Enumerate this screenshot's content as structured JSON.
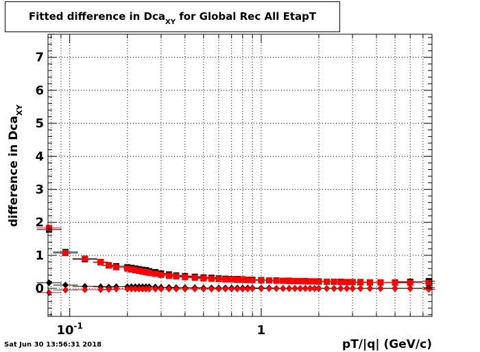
{
  "title": {
    "main": "Fitted difference in Dca",
    "sub": "XY",
    "suffix": " for Global Rec All EtapT"
  },
  "ylabel": {
    "main": "difference in Dca",
    "sub": "XY"
  },
  "xlabel": "pT/|q| (GeV/c)",
  "datestamp": "Sat Jun 30 13:56:31 2018",
  "colors": {
    "series_red": "#ff0000",
    "series_black": "#000000",
    "grid": "#000000"
  },
  "chart_data": {
    "type": "scatter",
    "xscale": "log",
    "xlim": [
      0.077,
      7.8
    ],
    "ylim": [
      -0.85,
      7.7
    ],
    "grid": true,
    "xticks": [
      {
        "value": 0.1,
        "label": "10",
        "sup": "-1"
      },
      {
        "value": 1,
        "label": "1",
        "sup": ""
      }
    ],
    "yticks": [
      0,
      1,
      2,
      3,
      4,
      5,
      6,
      7
    ],
    "series": [
      {
        "color": "#000000",
        "marker": "square",
        "x": [
          0.078,
          0.095,
          0.12,
          0.145,
          0.16,
          0.175,
          0.2,
          0.21,
          0.22,
          0.23,
          0.24,
          0.25,
          0.26,
          0.28,
          0.3,
          0.33,
          0.36,
          0.4,
          0.45,
          0.5,
          0.55,
          0.6,
          0.65,
          0.7,
          0.75,
          0.8,
          0.85,
          0.9,
          1.0,
          1.1,
          1.2,
          1.3,
          1.4,
          1.5,
          1.6,
          1.7,
          1.8,
          1.9,
          2.0,
          2.2,
          2.4,
          2.6,
          2.8,
          3.0,
          3.3,
          3.7,
          4.2,
          5.0,
          6.0,
          7.5
        ],
        "y": [
          1.78,
          1.1,
          0.88,
          0.79,
          0.7,
          0.67,
          0.64,
          0.62,
          0.6,
          0.58,
          0.56,
          0.55,
          0.52,
          0.49,
          0.45,
          0.42,
          0.39,
          0.37,
          0.35,
          0.33,
          0.32,
          0.3,
          0.29,
          0.28,
          0.28,
          0.27,
          0.26,
          0.26,
          0.25,
          0.24,
          0.24,
          0.23,
          0.23,
          0.22,
          0.22,
          0.22,
          0.21,
          0.21,
          0.21,
          0.2,
          0.2,
          0.2,
          0.19,
          0.19,
          0.19,
          0.18,
          0.18,
          0.18,
          0.2,
          0.22
        ]
      },
      {
        "color": "#ff0000",
        "marker": "square",
        "x": [
          0.078,
          0.095,
          0.12,
          0.145,
          0.16,
          0.175,
          0.2,
          0.21,
          0.22,
          0.23,
          0.24,
          0.25,
          0.26,
          0.28,
          0.3,
          0.33,
          0.36,
          0.4,
          0.45,
          0.5,
          0.55,
          0.6,
          0.65,
          0.7,
          0.75,
          0.8,
          0.85,
          0.9,
          1.0,
          1.1,
          1.2,
          1.3,
          1.4,
          1.5,
          1.6,
          1.7,
          1.8,
          1.9,
          2.0,
          2.2,
          2.4,
          2.6,
          2.8,
          3.0,
          3.3,
          3.7,
          4.2,
          5.0,
          6.0,
          7.5
        ],
        "y": [
          1.83,
          1.07,
          0.9,
          0.8,
          0.69,
          0.64,
          0.6,
          0.57,
          0.55,
          0.53,
          0.51,
          0.49,
          0.47,
          0.44,
          0.41,
          0.38,
          0.36,
          0.34,
          0.32,
          0.3,
          0.29,
          0.28,
          0.27,
          0.27,
          0.26,
          0.26,
          0.25,
          0.25,
          0.24,
          0.24,
          0.23,
          0.23,
          0.22,
          0.22,
          0.22,
          0.21,
          0.21,
          0.21,
          0.2,
          0.2,
          0.2,
          0.19,
          0.19,
          0.19,
          0.18,
          0.18,
          0.18,
          0.17,
          0.17,
          0.16
        ]
      },
      {
        "color": "#000000",
        "marker": "diamond",
        "x": [
          0.078,
          0.095,
          0.12,
          0.145,
          0.16,
          0.175,
          0.2,
          0.21,
          0.22,
          0.23,
          0.24,
          0.25,
          0.26,
          0.28,
          0.3,
          0.33,
          0.36,
          0.4,
          0.45,
          0.5,
          0.55,
          0.6,
          0.65,
          0.7,
          0.75,
          0.8,
          0.85,
          0.9,
          1.0,
          1.1,
          1.2,
          1.3,
          1.4,
          1.5,
          1.6,
          1.7,
          1.8,
          1.9,
          2.0,
          2.2,
          2.4,
          2.6,
          2.8,
          3.0,
          3.3,
          3.7,
          4.2,
          5.0,
          6.0,
          7.5
        ],
        "y": [
          0.17,
          0.1,
          0.06,
          0.05,
          0.04,
          0.05,
          0.05,
          0.05,
          0.05,
          0.05,
          0.05,
          0.05,
          0.05,
          0.04,
          0.03,
          0.03,
          0.02,
          0.02,
          0.02,
          0.01,
          0.01,
          0.01,
          0.01,
          0.01,
          0.01,
          0.01,
          0.01,
          0.01,
          0.01,
          0.01,
          0.0,
          0.0,
          0.0,
          0.0,
          0.0,
          0.0,
          0.0,
          0.0,
          0.0,
          0.0,
          0.0,
          0.0,
          0.0,
          0.0,
          0.0,
          0.0,
          0.0,
          0.0,
          0.0,
          0.02
        ]
      },
      {
        "color": "#ff0000",
        "marker": "diamond",
        "x": [
          0.078,
          0.095,
          0.12,
          0.145,
          0.16,
          0.175,
          0.2,
          0.21,
          0.22,
          0.23,
          0.24,
          0.25,
          0.26,
          0.28,
          0.3,
          0.33,
          0.36,
          0.4,
          0.45,
          0.5,
          0.55,
          0.6,
          0.65,
          0.7,
          0.75,
          0.8,
          0.85,
          0.9,
          1.0,
          1.1,
          1.2,
          1.3,
          1.4,
          1.5,
          1.6,
          1.7,
          1.8,
          1.9,
          2.0,
          2.2,
          2.4,
          2.6,
          2.8,
          3.0,
          3.3,
          3.7,
          4.2,
          5.0,
          6.0,
          7.5
        ],
        "y": [
          -0.13,
          -0.05,
          -0.04,
          -0.04,
          -0.03,
          -0.02,
          -0.02,
          -0.02,
          -0.02,
          -0.02,
          -0.02,
          -0.02,
          -0.02,
          -0.02,
          -0.02,
          -0.02,
          -0.02,
          -0.02,
          -0.02,
          -0.02,
          -0.02,
          -0.02,
          -0.02,
          -0.02,
          -0.02,
          -0.02,
          -0.02,
          -0.01,
          -0.01,
          -0.01,
          -0.01,
          -0.01,
          -0.01,
          -0.01,
          -0.01,
          -0.01,
          -0.01,
          -0.01,
          -0.01,
          -0.01,
          -0.01,
          -0.01,
          -0.01,
          -0.01,
          -0.01,
          -0.01,
          -0.01,
          -0.01,
          -0.01,
          -0.03
        ]
      }
    ]
  }
}
